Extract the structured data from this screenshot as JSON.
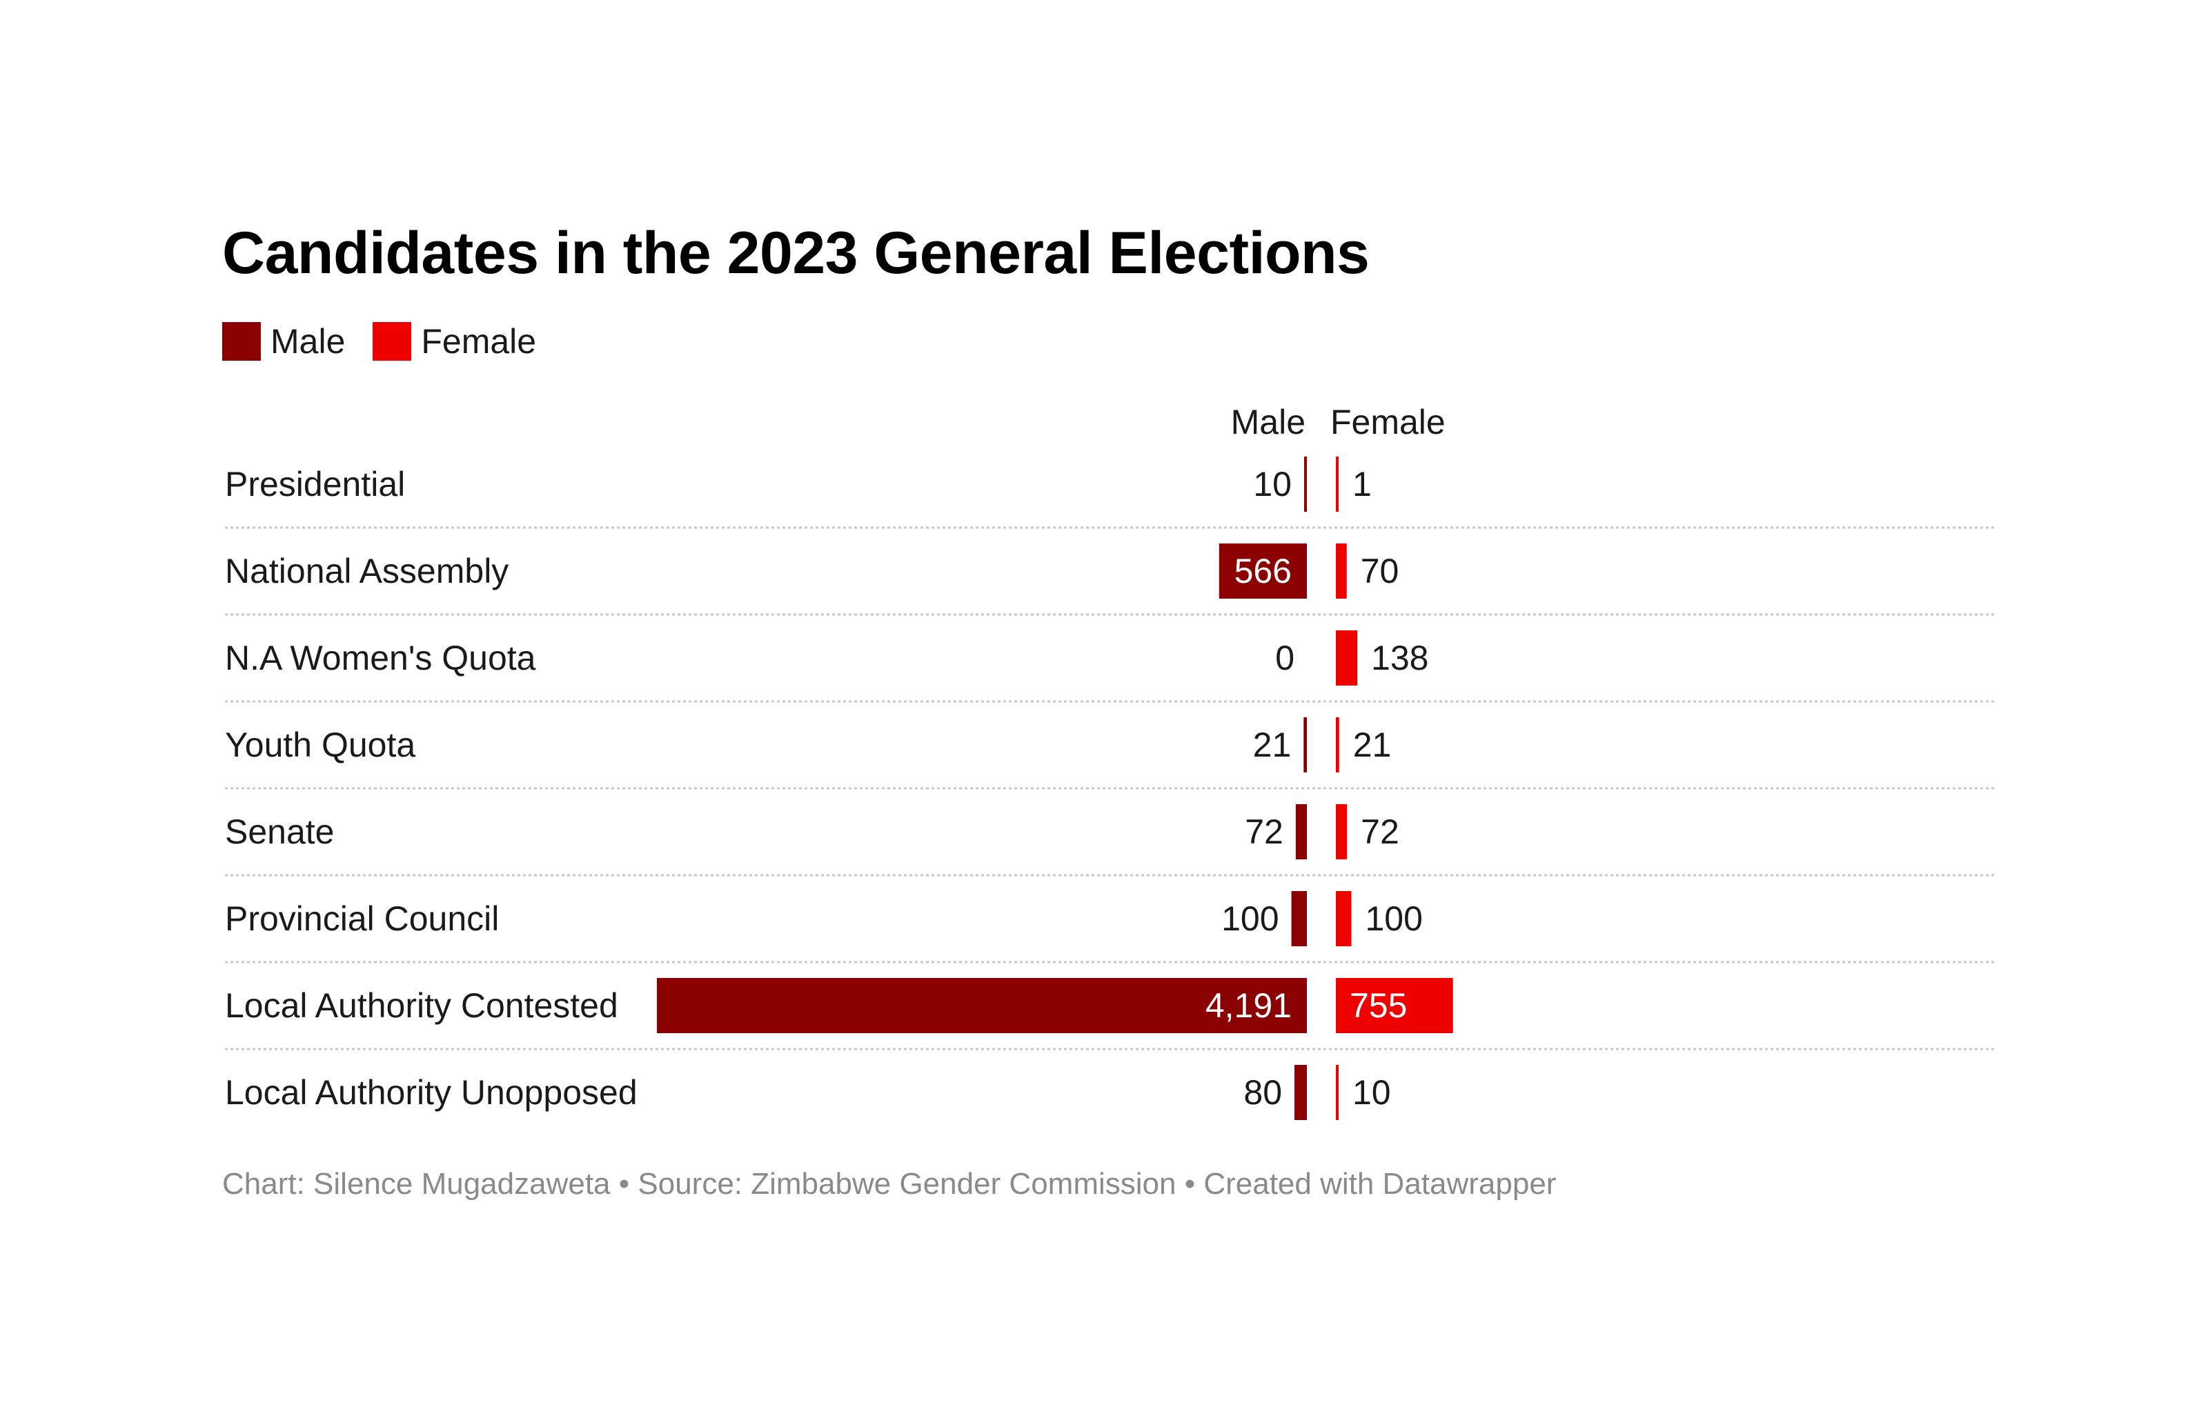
{
  "chart_data": {
    "type": "bar",
    "title": "Candidates in the 2023 General Elections",
    "column_headers": {
      "left": "Male",
      "right": "Female"
    },
    "legend": [
      {
        "name": "Male",
        "color": "#8b0000"
      },
      {
        "name": "Female",
        "color": "#ee0000"
      }
    ],
    "categories": [
      "Presidential",
      "National Assembly",
      "N.A Women's Quota",
      "Youth Quota",
      "Senate",
      "Provincial Council",
      "Local Authority Contested",
      "Local Authority Unopposed"
    ],
    "series": [
      {
        "name": "Male",
        "color": "#8b0000",
        "values": [
          10,
          566,
          0,
          21,
          72,
          100,
          4191,
          80
        ],
        "labels": [
          "10",
          "566",
          "0",
          "21",
          "72",
          "100",
          "4,191",
          "80"
        ]
      },
      {
        "name": "Female",
        "color": "#ee0000",
        "values": [
          1,
          70,
          138,
          21,
          72,
          100,
          755,
          10
        ],
        "labels": [
          "1",
          "70",
          "138",
          "21",
          "72",
          "100",
          "755",
          "10"
        ]
      }
    ],
    "xlim": [
      0,
      4191
    ],
    "grid": false,
    "legend_position": "top-left"
  },
  "footer": {
    "chart_credit": "Chart: Silence Mugadzaweta",
    "separator1": " • ",
    "source": "Source: Zimbabwe Gender Commission",
    "separator2": "  • ",
    "created_with": "Created with Datawrapper"
  }
}
